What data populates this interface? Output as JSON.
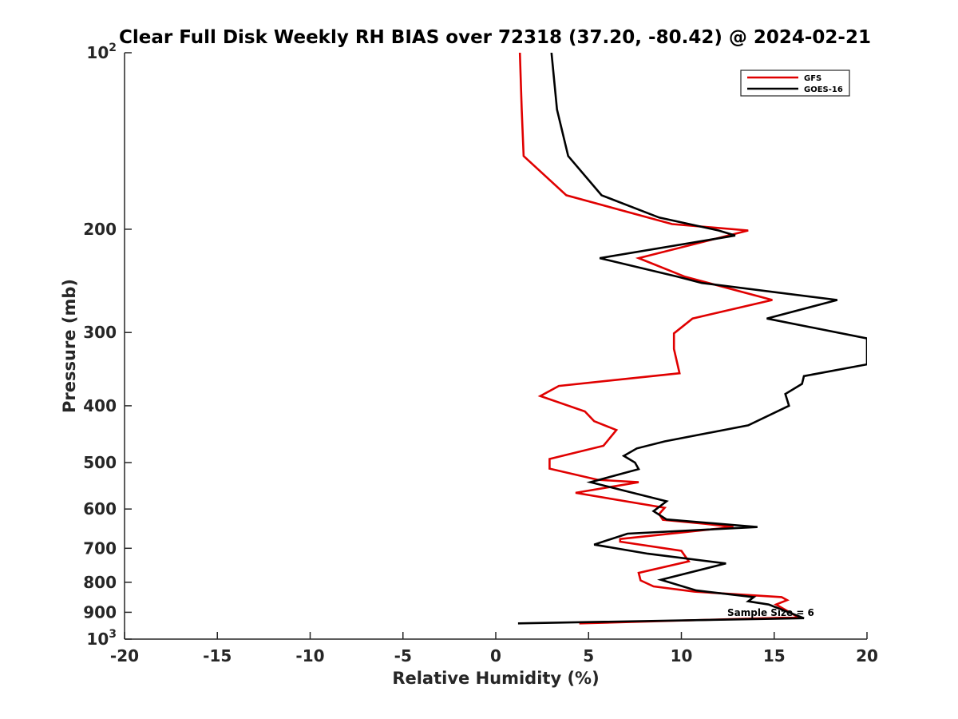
{
  "chart_data": {
    "type": "line",
    "title": "Clear Full Disk Weekly RH BIAS over 72318 (37.20, -80.42) @ 2024-02-21",
    "xlabel": "Relative Humidity (%)",
    "ylabel": "Pressure (mb)",
    "xlim": [
      -20,
      20
    ],
    "ylim": [
      100,
      1000
    ],
    "y_scale": "log",
    "y_reversed": true,
    "grid": false,
    "legend_position": "top-right",
    "x_ticks": [
      "-20",
      "-15",
      "-10",
      "-5",
      "0",
      "5",
      "10",
      "15",
      "20"
    ],
    "y_ticks": [
      {
        "label": "10",
        "sup": "2",
        "value": 100
      },
      {
        "label": "200",
        "sup": "",
        "value": 200
      },
      {
        "label": "300",
        "sup": "",
        "value": 300
      },
      {
        "label": "400",
        "sup": "",
        "value": 400
      },
      {
        "label": "500",
        "sup": "",
        "value": 500
      },
      {
        "label": "600",
        "sup": "",
        "value": 600
      },
      {
        "label": "700",
        "sup": "",
        "value": 700
      },
      {
        "label": "800",
        "sup": "",
        "value": 800
      },
      {
        "label": "900",
        "sup": "",
        "value": 900
      },
      {
        "label": "10",
        "sup": "3",
        "value": 1000
      }
    ],
    "series": [
      {
        "name": "GFS",
        "color": "#e00000",
        "points": [
          [
            1.3,
            100
          ],
          [
            1.4,
            125
          ],
          [
            1.5,
            150
          ],
          [
            3.8,
            175
          ],
          [
            9.5,
            196
          ],
          [
            13.6,
            201
          ],
          [
            7.7,
            224
          ],
          [
            10.2,
            241
          ],
          [
            14.9,
            264
          ],
          [
            10.6,
            284
          ],
          [
            9.6,
            301
          ],
          [
            9.6,
            320
          ],
          [
            9.9,
            352
          ],
          [
            3.4,
            370
          ],
          [
            2.4,
            385
          ],
          [
            4.8,
            409
          ],
          [
            5.3,
            425
          ],
          [
            6.5,
            440
          ],
          [
            5.8,
            468
          ],
          [
            2.9,
            493
          ],
          [
            2.9,
            512
          ],
          [
            5.5,
            535
          ],
          [
            7.7,
            540
          ],
          [
            4.3,
            563
          ],
          [
            9.1,
            597
          ],
          [
            8.8,
            612
          ],
          [
            9.0,
            626
          ],
          [
            11.3,
            636
          ],
          [
            12.8,
            644
          ],
          [
            6.7,
            675
          ],
          [
            6.7,
            682
          ],
          [
            10.0,
            707
          ],
          [
            10.4,
            737
          ],
          [
            7.7,
            771
          ],
          [
            7.8,
            794
          ],
          [
            8.5,
            813
          ],
          [
            10.7,
            830
          ],
          [
            15.4,
            848
          ],
          [
            15.7,
            858
          ],
          [
            15.1,
            873
          ],
          [
            16.3,
            918
          ],
          [
            4.5,
            940
          ]
        ]
      },
      {
        "name": "GOES-16",
        "color": "#000000",
        "points": [
          [
            3.0,
            100
          ],
          [
            3.3,
            125
          ],
          [
            3.9,
            150
          ],
          [
            5.7,
            175
          ],
          [
            8.8,
            191
          ],
          [
            12.0,
            201
          ],
          [
            12.9,
            205
          ],
          [
            5.6,
            224
          ],
          [
            9.8,
            241
          ],
          [
            11.1,
            247
          ],
          [
            18.4,
            264
          ],
          [
            14.6,
            284
          ],
          [
            20.0,
            307
          ],
          [
            20.0,
            340
          ],
          [
            16.6,
            356
          ],
          [
            16.5,
            367
          ],
          [
            15.6,
            382
          ],
          [
            15.8,
            400
          ],
          [
            13.6,
            432
          ],
          [
            9.1,
            460
          ],
          [
            7.6,
            473
          ],
          [
            6.9,
            487
          ],
          [
            7.5,
            500
          ],
          [
            7.7,
            513
          ],
          [
            5.1,
            540
          ],
          [
            9.2,
            582
          ],
          [
            8.5,
            605
          ],
          [
            9.2,
            625
          ],
          [
            14.1,
            644
          ],
          [
            7.1,
            661
          ],
          [
            5.3,
            690
          ],
          [
            8.2,
            715
          ],
          [
            12.4,
            743
          ],
          [
            8.9,
            792
          ],
          [
            10.8,
            826
          ],
          [
            13.9,
            848
          ],
          [
            13.6,
            862
          ],
          [
            14.7,
            873
          ],
          [
            16.6,
            921
          ],
          [
            1.2,
            940
          ]
        ]
      }
    ],
    "annotation": "Sample Size = 6"
  }
}
